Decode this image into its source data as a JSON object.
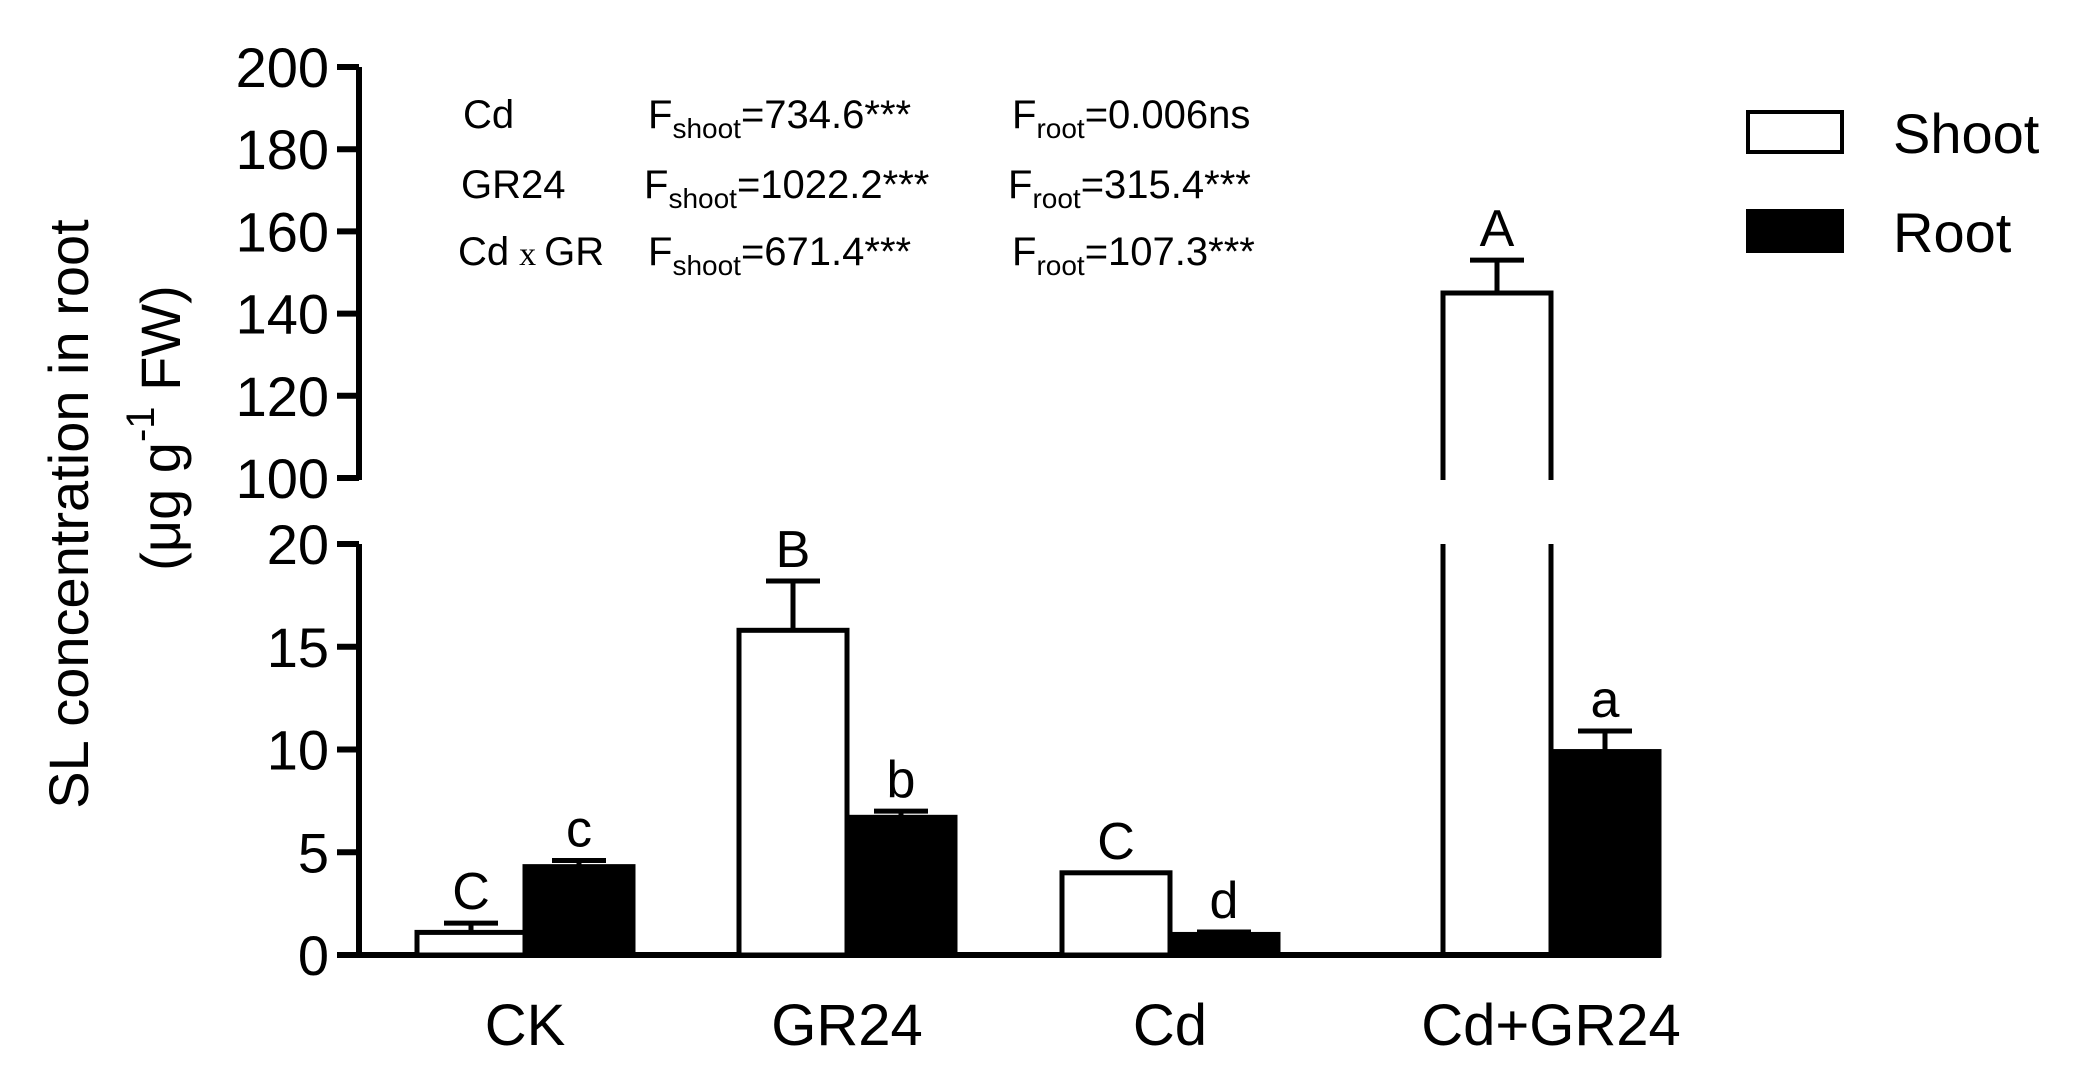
{
  "chart_data": {
    "type": "bar",
    "ylabel_line1": "SL concentration in root",
    "ylabel_line2_prefix": "(μg g",
    "ylabel_line2_sup": "-1",
    "ylabel_line2_suffix": " FW)",
    "categories": [
      "CK",
      "GR24",
      "Cd",
      "Cd+GR24"
    ],
    "series": [
      {
        "name": "Shoot",
        "fill": "#ffffff",
        "values": [
          1.1,
          15.8,
          4.0,
          145.0
        ],
        "errors": [
          0.45,
          2.4,
          0.0,
          8.0
        ],
        "letters": [
          "C",
          "B",
          "C",
          "A"
        ]
      },
      {
        "name": "Root",
        "fill": "#000000",
        "values": [
          4.3,
          6.7,
          1.0,
          9.9
        ],
        "errors": [
          0.3,
          0.3,
          0.12,
          1.0
        ],
        "letters": [
          "c",
          "b",
          "d",
          "a"
        ]
      }
    ],
    "axis_broken": true,
    "lower_segment": {
      "range": [
        0,
        20
      ],
      "ticks": [
        "0",
        "5",
        "10",
        "15",
        "20"
      ]
    },
    "upper_segment": {
      "range": [
        100,
        200
      ],
      "ticks": [
        "100",
        "120",
        "140",
        "160",
        "180",
        "200"
      ]
    },
    "legend_position": "top-right",
    "grid": false,
    "stats": [
      {
        "factor": "Cd",
        "shoot": "=734.6***",
        "root": "=0.006ns"
      },
      {
        "factor": "GR24",
        "shoot": "=1022.2***",
        "root": "=315.4***"
      },
      {
        "factor_a": "Cd",
        "factor_x": "x",
        "factor_b": "GR",
        "shoot": "=671.4***",
        "root": "=107.3***"
      }
    ],
    "stat_F": "F",
    "stat_shoot_sub": "shoot",
    "stat_root_sub": "root"
  }
}
